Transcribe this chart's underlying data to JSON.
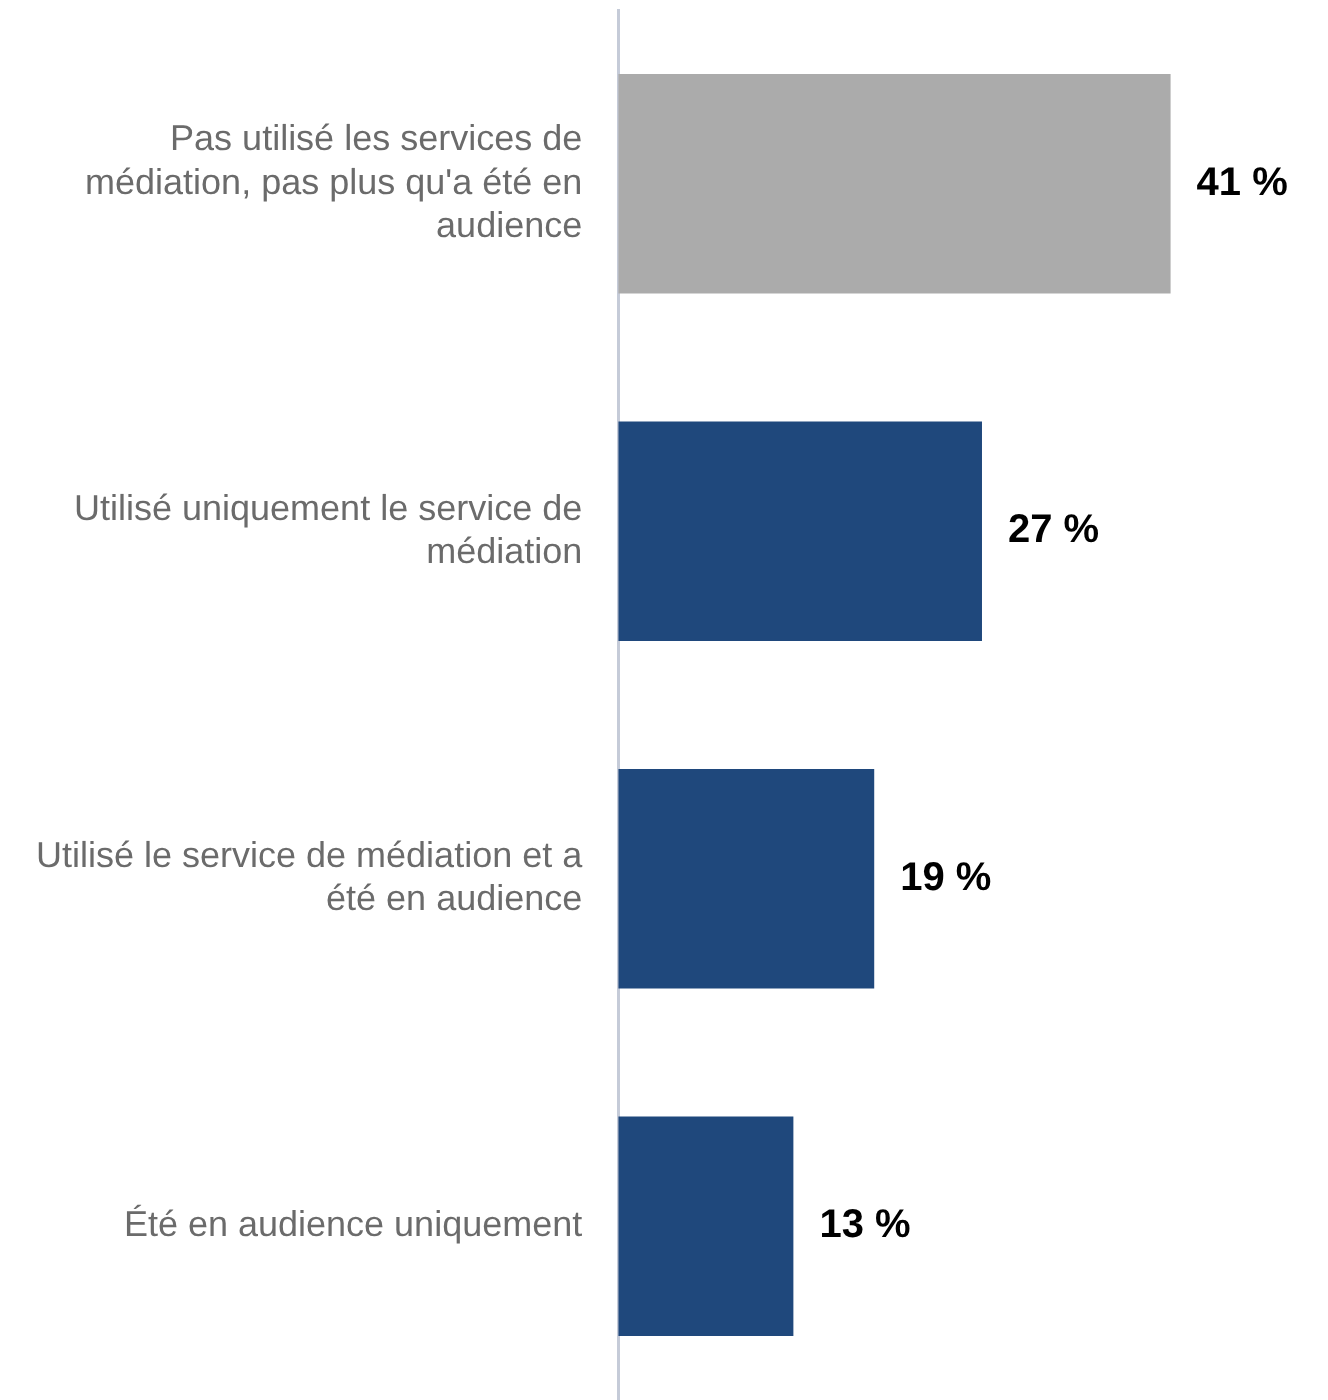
{
  "chart_data": {
    "type": "bar",
    "orientation": "horizontal",
    "categories": [
      "Pas utilisé les services de médiation, pas plus qu'a été en audience",
      "Utilisé uniquement le service de médiation",
      "Utilisé le service de médiation et a été en audience",
      "Été en audience uniquement"
    ],
    "values": [
      41,
      27,
      19,
      13
    ],
    "colors": [
      "#ababab",
      "#1f487c",
      "#1f487c",
      "#1f487c"
    ],
    "value_labels": [
      "41 %",
      "27 %",
      "19 %",
      "13 %"
    ],
    "legend": false
  }
}
